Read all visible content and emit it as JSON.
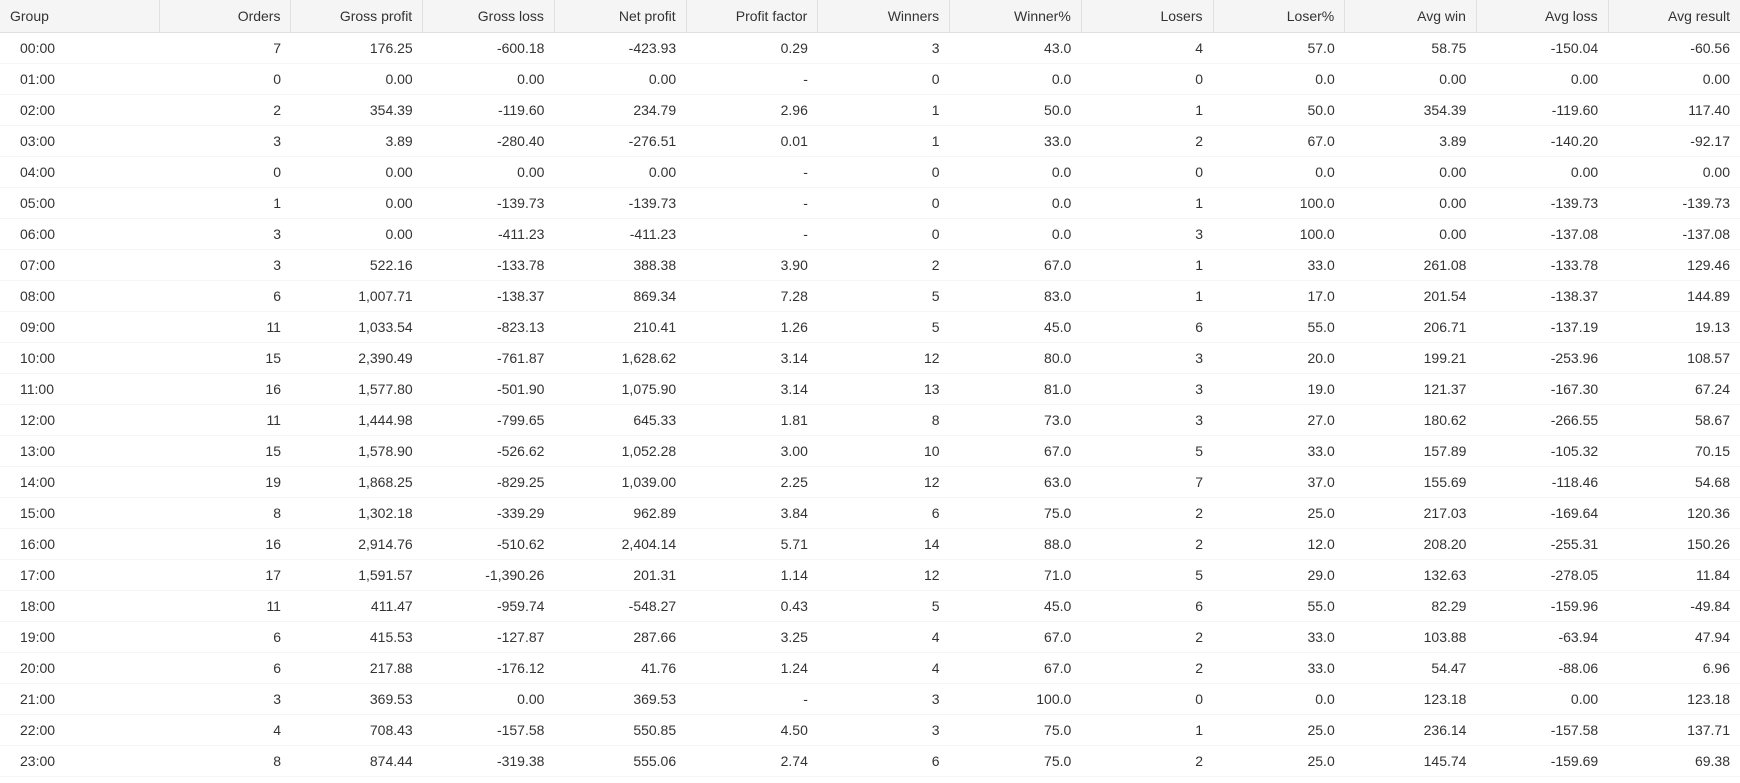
{
  "table": {
    "columns": [
      "Group",
      "Orders",
      "Gross profit",
      "Gross loss",
      "Net profit",
      "Profit factor",
      "Winners",
      "Winner%",
      "Losers",
      "Loser%",
      "Avg win",
      "Avg loss",
      "Avg result"
    ],
    "rows": [
      [
        "00:00",
        "7",
        "176.25",
        "-600.18",
        "-423.93",
        "0.29",
        "3",
        "43.0",
        "4",
        "57.0",
        "58.75",
        "-150.04",
        "-60.56"
      ],
      [
        "01:00",
        "0",
        "0.00",
        "0.00",
        "0.00",
        "-",
        "0",
        "0.0",
        "0",
        "0.0",
        "0.00",
        "0.00",
        "0.00"
      ],
      [
        "02:00",
        "2",
        "354.39",
        "-119.60",
        "234.79",
        "2.96",
        "1",
        "50.0",
        "1",
        "50.0",
        "354.39",
        "-119.60",
        "117.40"
      ],
      [
        "03:00",
        "3",
        "3.89",
        "-280.40",
        "-276.51",
        "0.01",
        "1",
        "33.0",
        "2",
        "67.0",
        "3.89",
        "-140.20",
        "-92.17"
      ],
      [
        "04:00",
        "0",
        "0.00",
        "0.00",
        "0.00",
        "-",
        "0",
        "0.0",
        "0",
        "0.0",
        "0.00",
        "0.00",
        "0.00"
      ],
      [
        "05:00",
        "1",
        "0.00",
        "-139.73",
        "-139.73",
        "-",
        "0",
        "0.0",
        "1",
        "100.0",
        "0.00",
        "-139.73",
        "-139.73"
      ],
      [
        "06:00",
        "3",
        "0.00",
        "-411.23",
        "-411.23",
        "-",
        "0",
        "0.0",
        "3",
        "100.0",
        "0.00",
        "-137.08",
        "-137.08"
      ],
      [
        "07:00",
        "3",
        "522.16",
        "-133.78",
        "388.38",
        "3.90",
        "2",
        "67.0",
        "1",
        "33.0",
        "261.08",
        "-133.78",
        "129.46"
      ],
      [
        "08:00",
        "6",
        "1,007.71",
        "-138.37",
        "869.34",
        "7.28",
        "5",
        "83.0",
        "1",
        "17.0",
        "201.54",
        "-138.37",
        "144.89"
      ],
      [
        "09:00",
        "11",
        "1,033.54",
        "-823.13",
        "210.41",
        "1.26",
        "5",
        "45.0",
        "6",
        "55.0",
        "206.71",
        "-137.19",
        "19.13"
      ],
      [
        "10:00",
        "15",
        "2,390.49",
        "-761.87",
        "1,628.62",
        "3.14",
        "12",
        "80.0",
        "3",
        "20.0",
        "199.21",
        "-253.96",
        "108.57"
      ],
      [
        "11:00",
        "16",
        "1,577.80",
        "-501.90",
        "1,075.90",
        "3.14",
        "13",
        "81.0",
        "3",
        "19.0",
        "121.37",
        "-167.30",
        "67.24"
      ],
      [
        "12:00",
        "11",
        "1,444.98",
        "-799.65",
        "645.33",
        "1.81",
        "8",
        "73.0",
        "3",
        "27.0",
        "180.62",
        "-266.55",
        "58.67"
      ],
      [
        "13:00",
        "15",
        "1,578.90",
        "-526.62",
        "1,052.28",
        "3.00",
        "10",
        "67.0",
        "5",
        "33.0",
        "157.89",
        "-105.32",
        "70.15"
      ],
      [
        "14:00",
        "19",
        "1,868.25",
        "-829.25",
        "1,039.00",
        "2.25",
        "12",
        "63.0",
        "7",
        "37.0",
        "155.69",
        "-118.46",
        "54.68"
      ],
      [
        "15:00",
        "8",
        "1,302.18",
        "-339.29",
        "962.89",
        "3.84",
        "6",
        "75.0",
        "2",
        "25.0",
        "217.03",
        "-169.64",
        "120.36"
      ],
      [
        "16:00",
        "16",
        "2,914.76",
        "-510.62",
        "2,404.14",
        "5.71",
        "14",
        "88.0",
        "2",
        "12.0",
        "208.20",
        "-255.31",
        "150.26"
      ],
      [
        "17:00",
        "17",
        "1,591.57",
        "-1,390.26",
        "201.31",
        "1.14",
        "12",
        "71.0",
        "5",
        "29.0",
        "132.63",
        "-278.05",
        "11.84"
      ],
      [
        "18:00",
        "11",
        "411.47",
        "-959.74",
        "-548.27",
        "0.43",
        "5",
        "45.0",
        "6",
        "55.0",
        "82.29",
        "-159.96",
        "-49.84"
      ],
      [
        "19:00",
        "6",
        "415.53",
        "-127.87",
        "287.66",
        "3.25",
        "4",
        "67.0",
        "2",
        "33.0",
        "103.88",
        "-63.94",
        "47.94"
      ],
      [
        "20:00",
        "6",
        "217.88",
        "-176.12",
        "41.76",
        "1.24",
        "4",
        "67.0",
        "2",
        "33.0",
        "54.47",
        "-88.06",
        "6.96"
      ],
      [
        "21:00",
        "3",
        "369.53",
        "0.00",
        "369.53",
        "-",
        "3",
        "100.0",
        "0",
        "0.0",
        "123.18",
        "0.00",
        "123.18"
      ],
      [
        "22:00",
        "4",
        "708.43",
        "-157.58",
        "550.85",
        "4.50",
        "3",
        "75.0",
        "1",
        "25.0",
        "236.14",
        "-157.58",
        "137.71"
      ],
      [
        "23:00",
        "8",
        "874.44",
        "-319.38",
        "555.06",
        "2.74",
        "6",
        "75.0",
        "2",
        "25.0",
        "145.74",
        "-159.69",
        "69.38"
      ]
    ],
    "header_bg": "#f5f5f5",
    "border_color": "#e0e0e0",
    "row_border_color": "#f5f5f5",
    "text_color": "#333333",
    "font_size": 14
  }
}
